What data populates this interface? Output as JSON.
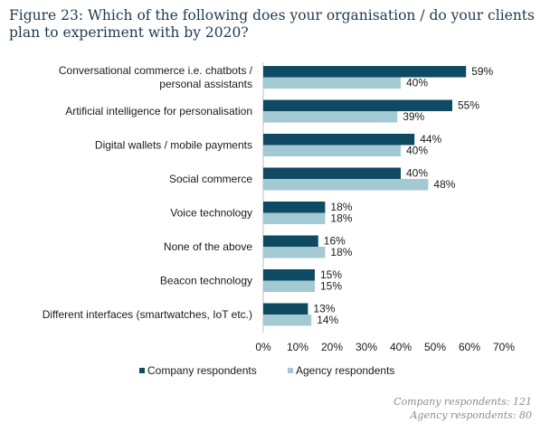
{
  "figure_title": "Figure 23: Which of the following does your organisation / do your clients plan to experiment with by 2020?",
  "footnotes": {
    "company": "Company respondents: 121",
    "agency": "Agency respondents: 80"
  },
  "colors": {
    "company": "#0f4a63",
    "agency": "#a3c9d3",
    "text": "#1a1a1a"
  },
  "chart_data": {
    "type": "bar",
    "orientation": "horizontal",
    "title": "Figure 23: Which of the following does your organisation / do your clients plan to experiment with by 2020?",
    "categories": [
      [
        "Conversational commerce i.e. chatbots /",
        "personal assistants"
      ],
      [
        "Artificial intelligence for personalisation"
      ],
      [
        "Digital wallets / mobile payments"
      ],
      [
        "Social commerce"
      ],
      [
        "Voice technology"
      ],
      [
        "None of the above"
      ],
      [
        "Beacon technology"
      ],
      [
        "Different interfaces (smartwatches, IoT etc.)"
      ]
    ],
    "series": [
      {
        "name": "Company respondents",
        "values": [
          59,
          55,
          44,
          40,
          18,
          16,
          15,
          13
        ]
      },
      {
        "name": "Agency respondents",
        "values": [
          40,
          39,
          40,
          48,
          18,
          18,
          15,
          14
        ]
      }
    ],
    "value_suffix": "%",
    "xlim": [
      0,
      70
    ],
    "xticks": [
      0,
      10,
      20,
      30,
      40,
      50,
      60,
      70
    ],
    "xtick_labels": [
      "0%",
      "10%",
      "20%",
      "30%",
      "40%",
      "50%",
      "60%",
      "70%"
    ],
    "legend": "bottom",
    "grid": false
  }
}
